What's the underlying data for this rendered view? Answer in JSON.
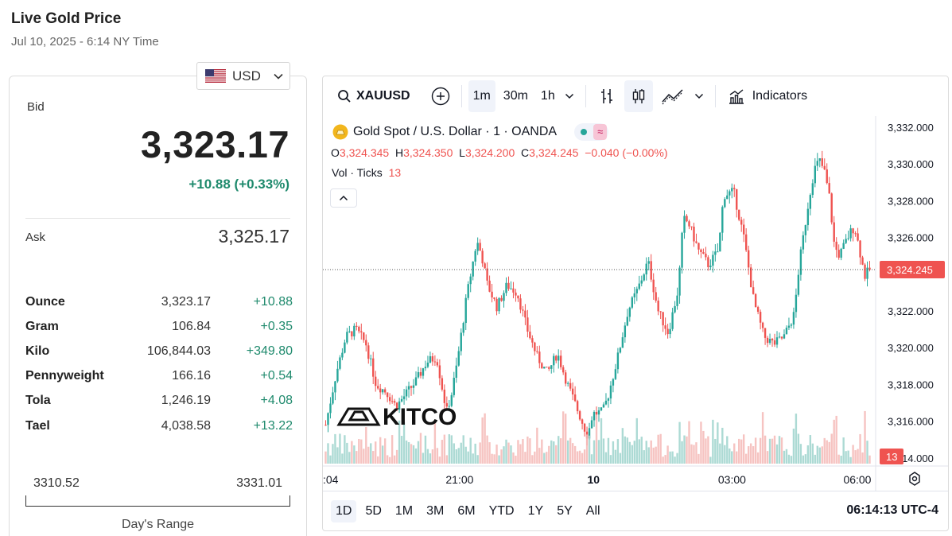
{
  "page": {
    "title": "Live Gold Price",
    "subtitle": "Jul 10, 2025 - 6:14 NY Time"
  },
  "currency": {
    "selected": "USD"
  },
  "quote": {
    "bid_label": "Bid",
    "bid": "3,323.17",
    "change": "+10.88 (+0.33%)",
    "ask_label": "Ask",
    "ask": "3,325.17"
  },
  "units": [
    {
      "name": "Ounce",
      "price": "3,323.17",
      "change": "+10.88"
    },
    {
      "name": "Gram",
      "price": "106.84",
      "change": "+0.35"
    },
    {
      "name": "Kilo",
      "price": "106,844.03",
      "change": "+349.80"
    },
    {
      "name": "Pennyweight",
      "price": "166.16",
      "change": "+0.54"
    },
    {
      "name": "Tola",
      "price": "1,246.19",
      "change": "+4.08"
    },
    {
      "name": "Tael",
      "price": "4,038.58",
      "change": "+13.22"
    }
  ],
  "range": {
    "low": "3310.52",
    "high": "3331.01",
    "label": "Day's Range"
  },
  "toolbar": {
    "symbol": "XAUUSD",
    "intervals": [
      "1m",
      "30m",
      "1h"
    ],
    "active_interval": "1m",
    "indicators_label": "Indicators"
  },
  "legend": {
    "series_title": "Gold Spot / U.S. Dollar · 1 · OANDA",
    "open_label": "O",
    "open": "3,324.345",
    "high_label": "H",
    "high": "3,324.350",
    "low_label": "L",
    "low": "3,324.200",
    "close_label": "C",
    "close": "3,324.245",
    "change": "−0.040 (−0.00%)",
    "volume_label": "Vol · Ticks",
    "volume": "13"
  },
  "colors": {
    "up": "#26a69a",
    "down": "#ef5350",
    "positive_text": "#1f8a6d"
  },
  "chart_data": {
    "type": "candlestick",
    "y_ticks": [
      "3,332.000",
      "3,330.000",
      "3,328.000",
      "3,326.000",
      "3,322.000",
      "3,320.000",
      "3,318.000",
      "3,316.000",
      "3,314.000"
    ],
    "y_tick_values": [
      3332,
      3330,
      3328,
      3326,
      3322,
      3320,
      3318,
      3316,
      3314
    ],
    "ylim": [
      3313.6,
      3332.6
    ],
    "x_ticks": [
      ":04",
      "21:00",
      "10",
      "03:00",
      "06:00"
    ],
    "x_tick_positions": [
      0.0,
      0.24,
      0.5,
      0.74,
      0.97
    ],
    "last_price": 3324.245,
    "last_price_label": "3,324.245",
    "last_volume_label": "13",
    "watermark": "KITCO",
    "price_path": [
      [
        0.0,
        3315.8
      ],
      [
        0.02,
        3318.5
      ],
      [
        0.04,
        3320.6
      ],
      [
        0.06,
        3321.0
      ],
      [
        0.08,
        3320.2
      ],
      [
        0.1,
        3318.0
      ],
      [
        0.12,
        3317.6
      ],
      [
        0.14,
        3316.8
      ],
      [
        0.16,
        3317.5
      ],
      [
        0.18,
        3318.2
      ],
      [
        0.2,
        3319.2
      ],
      [
        0.22,
        3319.5
      ],
      [
        0.24,
        3316.5
      ],
      [
        0.25,
        3317.5
      ],
      [
        0.26,
        3319.0
      ],
      [
        0.28,
        3322.8
      ],
      [
        0.3,
        3325.8
      ],
      [
        0.31,
        3325.0
      ],
      [
        0.32,
        3323.5
      ],
      [
        0.34,
        3322.2
      ],
      [
        0.36,
        3323.4
      ],
      [
        0.38,
        3323.0
      ],
      [
        0.4,
        3321.0
      ],
      [
        0.42,
        3319.5
      ],
      [
        0.44,
        3318.6
      ],
      [
        0.46,
        3319.7
      ],
      [
        0.48,
        3318.0
      ],
      [
        0.5,
        3316.6
      ],
      [
        0.52,
        3315.2
      ],
      [
        0.53,
        3316.4
      ],
      [
        0.55,
        3316.5
      ],
      [
        0.56,
        3317.3
      ],
      [
        0.58,
        3319.5
      ],
      [
        0.6,
        3322.0
      ],
      [
        0.62,
        3323.2
      ],
      [
        0.64,
        3324.7
      ],
      [
        0.66,
        3322.0
      ],
      [
        0.68,
        3320.8
      ],
      [
        0.7,
        3323.2
      ],
      [
        0.71,
        3327.0
      ],
      [
        0.72,
        3326.8
      ],
      [
        0.74,
        3325.3
      ],
      [
        0.76,
        3324.5
      ],
      [
        0.78,
        3325.3
      ],
      [
        0.79,
        3328.3
      ],
      [
        0.81,
        3328.5
      ],
      [
        0.83,
        3326.0
      ],
      [
        0.85,
        3322.5
      ],
      [
        0.87,
        3320.6
      ],
      [
        0.89,
        3320.2
      ],
      [
        0.91,
        3320.6
      ],
      [
        0.93,
        3321.8
      ],
      [
        0.94,
        3324.5
      ],
      [
        0.96,
        3328.2
      ],
      [
        0.97,
        3329.7
      ],
      [
        0.98,
        3330.2
      ],
      [
        0.99,
        3329.6
      ],
      [
        1.0,
        3328.2
      ],
      [
        1.01,
        3325.5
      ],
      [
        1.02,
        3325.0
      ],
      [
        1.03,
        3325.6
      ],
      [
        1.04,
        3326.2
      ],
      [
        1.05,
        3326.6
      ],
      [
        1.06,
        3325.3
      ],
      [
        1.07,
        3323.9
      ],
      [
        1.08,
        3324.245
      ]
    ]
  },
  "bottombar": {
    "ranges": [
      "1D",
      "5D",
      "1M",
      "3M",
      "6M",
      "YTD",
      "1Y",
      "5Y",
      "All"
    ],
    "active_range": "1D",
    "clock": "06:14:13 UTC-4"
  }
}
